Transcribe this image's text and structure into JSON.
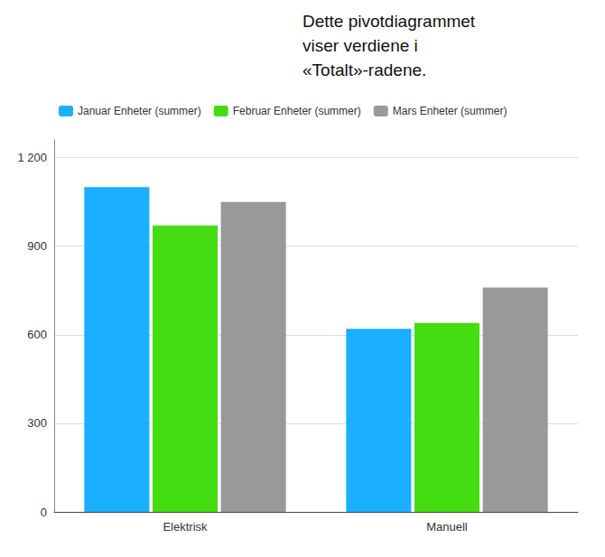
{
  "chart_data": {
    "type": "bar",
    "annotation": "Dette pivotdiagrammet\nviser verdiene i\n«Totalt»-radene.",
    "categories": [
      "Elektrisk",
      "Manuell"
    ],
    "series": [
      {
        "name": "Januar Enheter (summer)",
        "color": "#1AAFFF",
        "values": [
          1100,
          620
        ]
      },
      {
        "name": "Februar Enheter (summer)",
        "color": "#44DD11",
        "values": [
          970,
          640
        ]
      },
      {
        "name": "Mars Enheter (summer)",
        "color": "#999999",
        "values": [
          1050,
          760
        ]
      }
    ],
    "ylim": [
      0,
      1260
    ],
    "yticks": [
      0,
      300,
      600,
      900,
      {
        "value": 1200,
        "label": "1 200"
      }
    ],
    "grid": true,
    "legend": "upper left"
  }
}
